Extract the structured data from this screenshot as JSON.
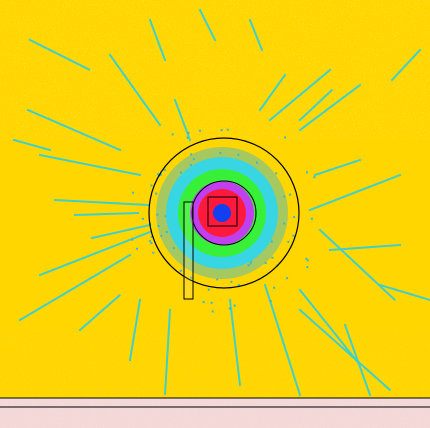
{
  "image": {
    "kind": "false-color intensity map of a point source with radial streaks",
    "colors": {
      "background_yellow": "#FFD600",
      "pale_yellow_patches": "#FFF27A",
      "streak_cyan": "#3FD0C8",
      "noise_cyan": "#37B9D4",
      "ring_cyan": "#38D6E2",
      "ring_green": "#38F038",
      "ring_magenta": "#C040F0",
      "ring_red": "#FF1A3C",
      "core_blue": "#1240F0",
      "outline": "#000000",
      "bottom_band": "#F4D8D8"
    },
    "overlays": [
      "large-circle",
      "small-circle",
      "square-marker",
      "vertical-rectangle",
      "horizontal-lines"
    ]
  }
}
